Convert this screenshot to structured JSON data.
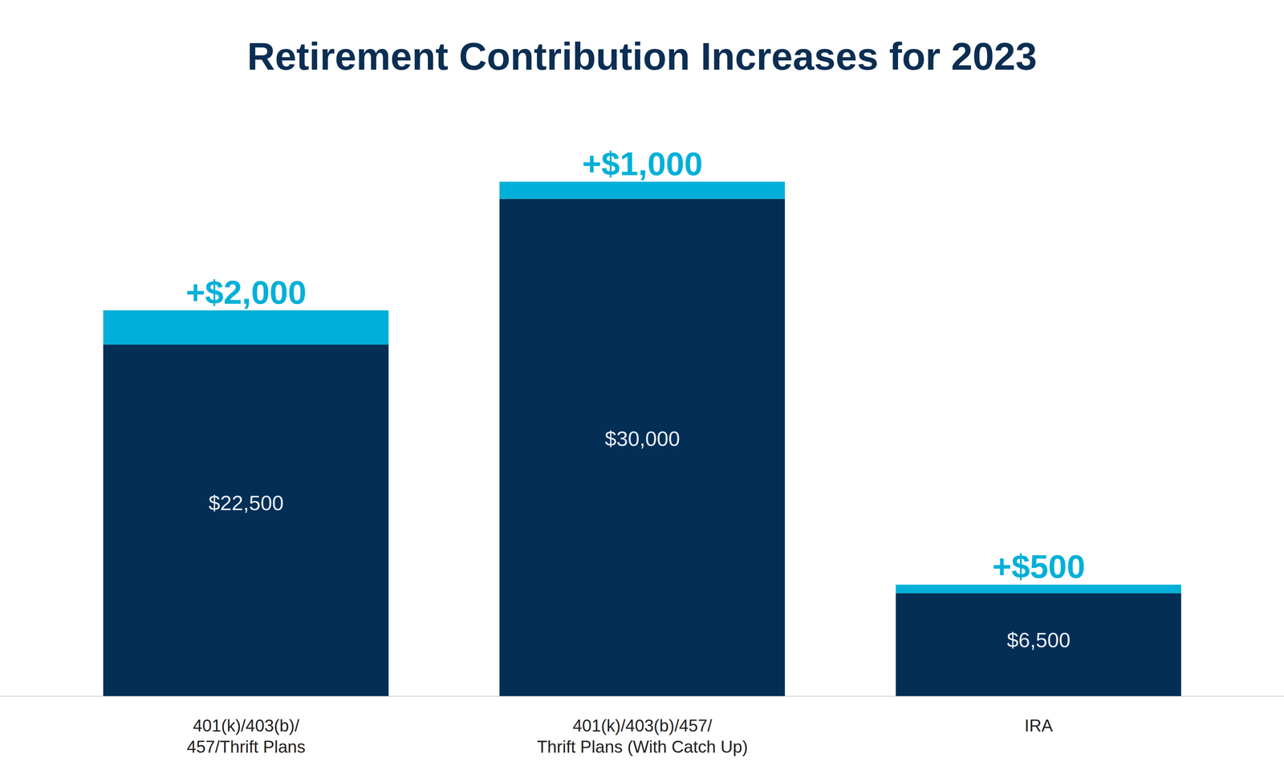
{
  "chart_data": {
    "type": "bar",
    "title": "Retirement Contribution Increases for 2023",
    "categories": [
      "401(k)/403(b)/\n457/Thrift Plans",
      "401(k)/403(b)/457/\nThrift Plans (With Catch Up)",
      "IRA"
    ],
    "stacked": true,
    "data_labels": true,
    "tick_labels": "x",
    "grid": false,
    "ylim": [
      0,
      30000
    ],
    "series": [
      {
        "color": "#032f57",
        "values": [
          20500,
          29000,
          6000
        ]
      },
      {
        "color": "#00b0d8",
        "values": [
          2000,
          1000,
          500
        ],
        "value_labels": [
          "+$2,000",
          "+$1,000",
          "+$500"
        ]
      }
    ],
    "totals": {
      "values": [
        22500,
        30000,
        6500
      ],
      "value_labels": [
        "$22,500",
        "$30,000",
        "$6,500"
      ]
    }
  }
}
